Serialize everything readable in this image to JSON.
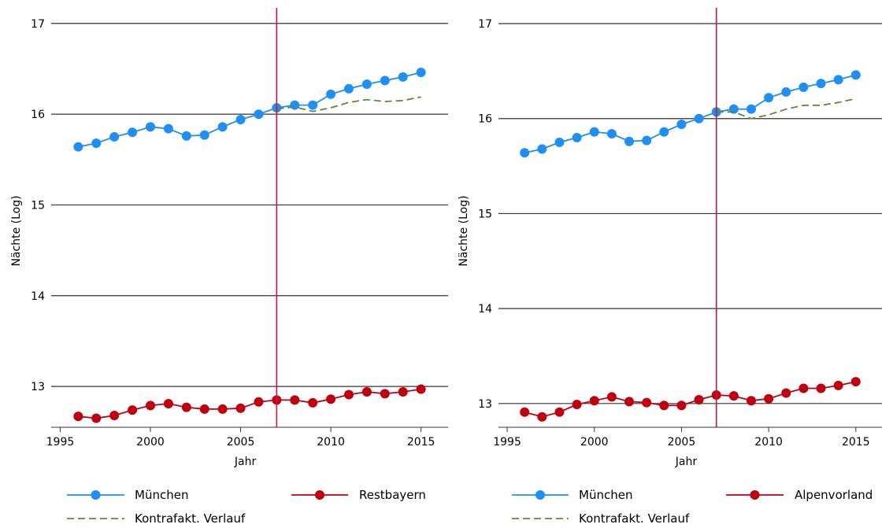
{
  "chart_data": [
    {
      "type": "line",
      "xlabel": "Jahr",
      "ylabel": "Nächte (Log)",
      "xlim": [
        1994.5,
        2016.5
      ],
      "ylim": [
        12.55,
        17.05
      ],
      "xticks": [
        1995,
        2000,
        2005,
        2010,
        2015
      ],
      "yticks": [
        13,
        14,
        15,
        16,
        17
      ],
      "grid": "horizontal",
      "intervention_year": 2007,
      "x": [
        1996,
        1997,
        1998,
        1999,
        2000,
        2001,
        2002,
        2003,
        2004,
        2005,
        2006,
        2007,
        2008,
        2009,
        2010,
        2011,
        2012,
        2013,
        2014,
        2015
      ],
      "series": [
        {
          "name": "München",
          "color": "#1f8ef5",
          "marker": "circle",
          "values": [
            15.64,
            15.68,
            15.75,
            15.8,
            15.86,
            15.84,
            15.76,
            15.77,
            15.86,
            15.94,
            16.0,
            16.07,
            16.1,
            16.1,
            16.22,
            16.28,
            16.33,
            16.37,
            16.41,
            16.46
          ]
        },
        {
          "name": "Restbayern",
          "color": "#c0000f",
          "marker": "circle",
          "values": [
            12.67,
            12.65,
            12.68,
            12.74,
            12.79,
            12.81,
            12.77,
            12.75,
            12.75,
            12.76,
            12.83,
            12.85,
            12.85,
            12.82,
            12.86,
            12.91,
            12.94,
            12.92,
            12.94,
            12.97
          ]
        },
        {
          "name": "Kontrafakt. Verlauf",
          "color": "#5a8a3c",
          "dashed": true,
          "x": [
            2007,
            2008,
            2009,
            2010,
            2011,
            2012,
            2013,
            2014,
            2015
          ],
          "values": [
            16.06,
            16.08,
            16.03,
            16.07,
            16.13,
            16.16,
            16.14,
            16.15,
            16.19
          ]
        }
      ],
      "legend": {
        "placement": "bottom",
        "items": [
          "München",
          "Restbayern",
          "Kontrafakt. Verlauf"
        ]
      }
    },
    {
      "type": "line",
      "xlabel": "Jahr",
      "ylabel": "Nächte (Log)",
      "xlim": [
        1994.5,
        2016.5
      ],
      "ylim": [
        12.75,
        17.05
      ],
      "xticks": [
        1995,
        2000,
        2005,
        2010,
        2015
      ],
      "yticks": [
        13,
        14,
        15,
        16,
        17
      ],
      "grid": "horizontal",
      "intervention_year": 2007,
      "x": [
        1996,
        1997,
        1998,
        1999,
        2000,
        2001,
        2002,
        2003,
        2004,
        2005,
        2006,
        2007,
        2008,
        2009,
        2010,
        2011,
        2012,
        2013,
        2014,
        2015
      ],
      "series": [
        {
          "name": "München",
          "color": "#1f8ef5",
          "marker": "circle",
          "values": [
            15.64,
            15.68,
            15.75,
            15.8,
            15.86,
            15.84,
            15.76,
            15.77,
            15.86,
            15.94,
            16.0,
            16.07,
            16.1,
            16.1,
            16.22,
            16.28,
            16.33,
            16.37,
            16.41,
            16.46
          ]
        },
        {
          "name": "Alpenvorland",
          "color": "#c0000f",
          "marker": "circle",
          "values": [
            12.91,
            12.86,
            12.91,
            12.99,
            13.03,
            13.07,
            13.02,
            13.01,
            12.98,
            12.98,
            13.04,
            13.09,
            13.08,
            13.03,
            13.05,
            13.11,
            13.16,
            13.16,
            13.19,
            13.23
          ]
        },
        {
          "name": "Kontrafakt. Verlauf",
          "color": "#5a8a3c",
          "dashed": true,
          "x": [
            2007,
            2008,
            2009,
            2010,
            2011,
            2012,
            2013,
            2014,
            2015
          ],
          "values": [
            16.07,
            16.07,
            16.0,
            16.04,
            16.1,
            16.14,
            16.14,
            16.17,
            16.21
          ]
        }
      ],
      "legend": {
        "placement": "bottom",
        "items": [
          "München",
          "Alpenvorland",
          "Kontrafakt. Verlauf"
        ]
      }
    }
  ]
}
